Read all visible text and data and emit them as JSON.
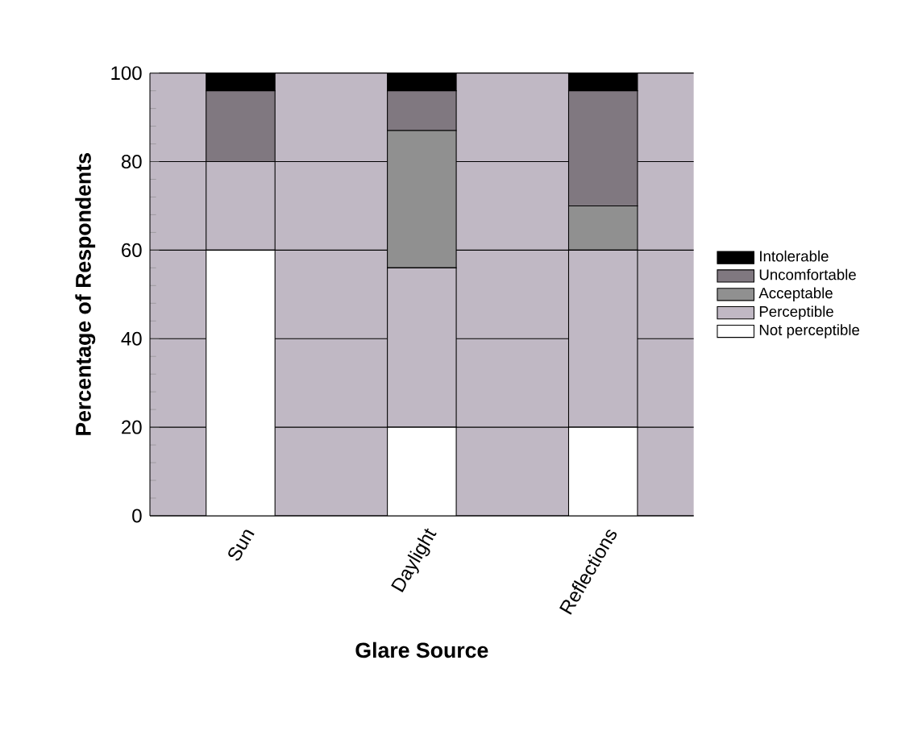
{
  "chart_data": {
    "type": "bar",
    "stacked": true,
    "xlabel": "Glare Source",
    "ylabel": "Percentage of Respondents",
    "categories": [
      "Sun",
      "Daylight",
      "Reflections"
    ],
    "series": [
      {
        "name": "Not perceptible",
        "color": "#ffffff",
        "values": [
          60,
          20,
          20
        ]
      },
      {
        "name": "Perceptible",
        "color": "#c0b8c4",
        "values": [
          20,
          36,
          40
        ]
      },
      {
        "name": "Acceptable",
        "color": "#909090",
        "values": [
          0,
          31,
          10
        ]
      },
      {
        "name": "Uncomfortable",
        "color": "#807880",
        "values": [
          16,
          9,
          26
        ]
      },
      {
        "name": "Intolerable",
        "color": "#000000",
        "values": [
          4,
          4,
          4
        ]
      }
    ],
    "ylim": [
      0,
      100
    ],
    "yticks": [
      0,
      20,
      40,
      60,
      80,
      100
    ],
    "grid": "y",
    "legend": "right"
  }
}
